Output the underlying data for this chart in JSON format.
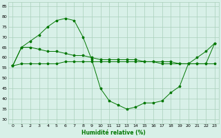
{
  "line1": {
    "x": [
      0,
      1,
      2,
      3,
      4,
      5,
      6,
      7,
      8,
      9,
      10,
      11,
      12,
      13,
      14,
      15,
      16,
      17,
      18,
      19,
      20,
      21,
      22,
      23
    ],
    "y": [
      56,
      57,
      57,
      57,
      57,
      57,
      58,
      58,
      58,
      58,
      58,
      58,
      58,
      58,
      58,
      58,
      58,
      58,
      58,
      57,
      57,
      57,
      57,
      57
    ]
  },
  "line2": {
    "x": [
      0,
      1,
      2,
      3,
      4,
      5,
      6,
      7,
      8,
      9,
      10,
      11,
      12,
      13,
      14,
      15,
      16,
      17,
      18,
      19,
      20,
      21,
      22,
      23
    ],
    "y": [
      56,
      65,
      65,
      64,
      63,
      63,
      62,
      61,
      61,
      60,
      59,
      59,
      59,
      59,
      59,
      58,
      58,
      57,
      57,
      57,
      57,
      57,
      57,
      67
    ]
  },
  "line3": {
    "x": [
      0,
      1,
      2,
      3,
      4,
      5,
      6,
      7,
      8,
      9,
      10,
      11,
      12,
      13,
      14,
      15,
      16,
      17,
      18,
      19,
      20,
      21,
      22,
      23
    ],
    "y": [
      56,
      65,
      68,
      71,
      75,
      78,
      79,
      78,
      70,
      59,
      45,
      39,
      37,
      35,
      36,
      38,
      38,
      39,
      43,
      46,
      57,
      60,
      63,
      67
    ]
  },
  "bg_color": "#d8f0e8",
  "grid_color": "#aacfbb",
  "line_color": "#007700",
  "xlabel": "Humidité relative (%)",
  "xlabel_fontsize": 5.5,
  "tick_fontsize": 4.5,
  "xlim": [
    -0.5,
    23.5
  ],
  "ylim": [
    28,
    87
  ],
  "yticks": [
    30,
    35,
    40,
    45,
    50,
    55,
    60,
    65,
    70,
    75,
    80,
    85
  ],
  "xticks": [
    0,
    1,
    2,
    3,
    4,
    5,
    6,
    7,
    8,
    9,
    10,
    11,
    12,
    13,
    14,
    15,
    16,
    17,
    18,
    19,
    20,
    21,
    22,
    23
  ],
  "marker_size": 2.5,
  "line_width": 0.7
}
